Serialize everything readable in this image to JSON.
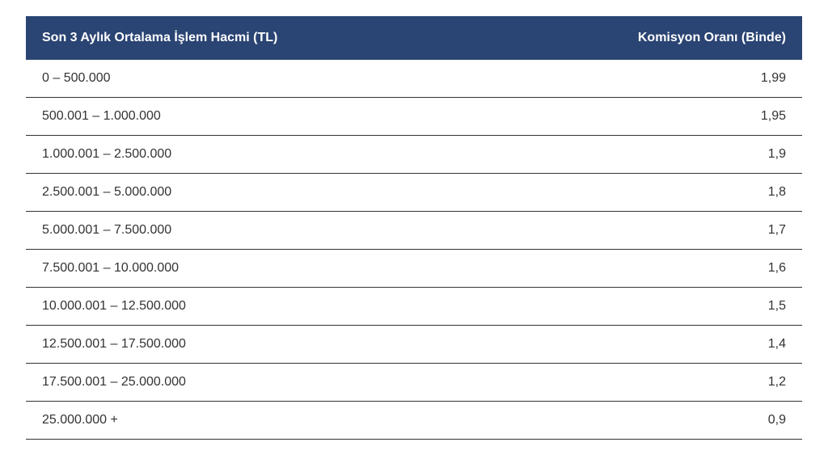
{
  "table": {
    "type": "table",
    "header_bg_color": "#2a4473",
    "header_text_color": "#ffffff",
    "row_border_color": "#333333",
    "cell_text_color": "#333333",
    "background_color": "#ffffff",
    "header_fontsize": 16,
    "cell_fontsize": 16,
    "columns": [
      {
        "label": "Son 3 Aylık Ortalama İşlem Hacmi (TL)",
        "align": "left"
      },
      {
        "label": "Komisyon Oranı (Binde)",
        "align": "right"
      }
    ],
    "rows": [
      {
        "range": "0 – 500.000",
        "rate": "1,99"
      },
      {
        "range": "500.001 – 1.000.000",
        "rate": "1,95"
      },
      {
        "range": "1.000.001 – 2.500.000",
        "rate": "1,9"
      },
      {
        "range": "2.500.001 – 5.000.000",
        "rate": "1,8"
      },
      {
        "range": "5.000.001 – 7.500.000",
        "rate": "1,7"
      },
      {
        "range": "7.500.001 – 10.000.000",
        "rate": "1,6"
      },
      {
        "range": "10.000.001 – 12.500.000",
        "rate": "1,5"
      },
      {
        "range": "12.500.001 – 17.500.000",
        "rate": "1,4"
      },
      {
        "range": "17.500.001 – 25.000.000",
        "rate": "1,2"
      },
      {
        "range": "25.000.000 +",
        "rate": "0,9"
      }
    ]
  }
}
